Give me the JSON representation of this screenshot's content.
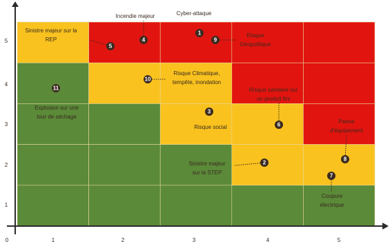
{
  "axes": {
    "x_labels": [
      "0",
      "1",
      "2",
      "3",
      "4",
      "5"
    ],
    "y_labels": [
      "1",
      "2",
      "3",
      "4",
      "5"
    ]
  },
  "palette": {
    "red": "#e2140f",
    "yellow": "#f9c21e",
    "green": "#5b8a39"
  },
  "cells": [
    [
      "yellow",
      "red",
      "red",
      "red",
      "red"
    ],
    [
      "green",
      "yellow",
      "yellow",
      "red",
      "red"
    ],
    [
      "green",
      "green",
      "yellow",
      "yellow",
      "red"
    ],
    [
      "green",
      "green",
      "green",
      "yellow",
      "yellow"
    ],
    [
      "green",
      "green",
      "green",
      "green",
      "green"
    ]
  ],
  "risks": [
    {
      "number": "1",
      "label": [
        "Cyber-attaque"
      ]
    },
    {
      "number": "2",
      "label": [
        "Sinistre majeur",
        "sur la STEP"
      ]
    },
    {
      "number": "3",
      "label": [
        "Risque social"
      ]
    },
    {
      "number": "4",
      "label": [
        "Incendie majeur"
      ]
    },
    {
      "number": "5",
      "label": [
        "Sinistre majeur sur la",
        "REP"
      ]
    },
    {
      "number": "6",
      "label": [
        "Risque sanitaire sur",
        "un produit fini"
      ]
    },
    {
      "number": "7",
      "label": [
        "Coupure",
        "électrique"
      ]
    },
    {
      "number": "8",
      "label": [
        "Panne",
        "d'équipement"
      ]
    },
    {
      "number": "9",
      "label": [
        "Risque",
        "Géopolitique"
      ]
    },
    {
      "number": "10",
      "label": [
        "Risque Climatique,",
        "tempête, inondation"
      ]
    },
    {
      "number": "11",
      "label": [
        "Explosion sur une",
        "tour de séchage"
      ]
    }
  ]
}
